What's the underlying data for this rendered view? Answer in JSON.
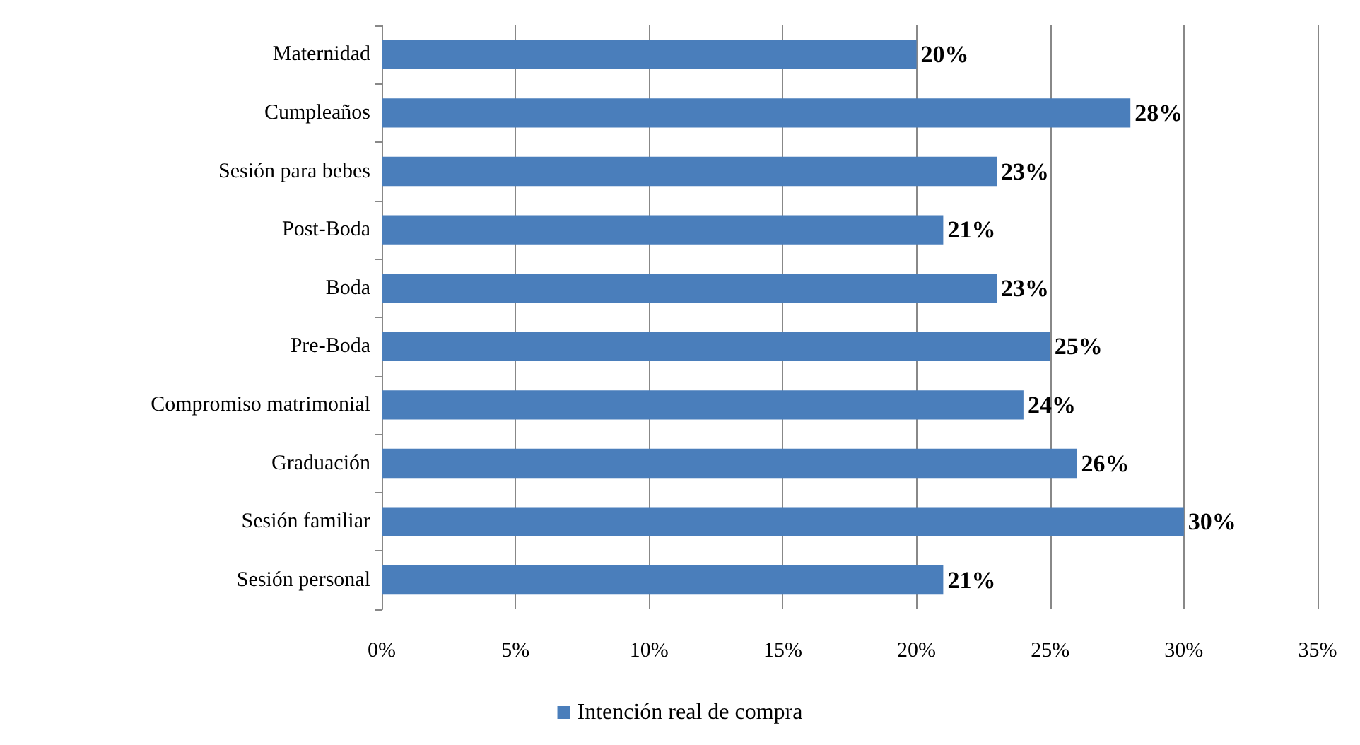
{
  "chart_data": {
    "type": "bar",
    "orientation": "horizontal",
    "categories": [
      "Maternidad",
      "Cumpleaños",
      "Sesión para bebes",
      "Post-Boda",
      "Boda",
      "Pre-Boda",
      "Compromiso matrimonial",
      "Graduación",
      "Sesión familiar",
      "Sesión personal"
    ],
    "series": [
      {
        "name": "Intención real de compra",
        "color": "#4a7ebb",
        "values": [
          20,
          28,
          23,
          21,
          23,
          25,
          24,
          26,
          30,
          21
        ],
        "value_labels": [
          "20%",
          "28%",
          "23%",
          "21%",
          "23%",
          "25%",
          "24%",
          "26%",
          "30%",
          "21%"
        ]
      }
    ],
    "xlim": [
      0,
      35
    ],
    "xticks": [
      {
        "value": 0,
        "label": "0%"
      },
      {
        "value": 5,
        "label": "5%"
      },
      {
        "value": 10,
        "label": "10%"
      },
      {
        "value": 15,
        "label": "15%"
      },
      {
        "value": 20,
        "label": "20%"
      },
      {
        "value": 25,
        "label": "25%"
      },
      {
        "value": 30,
        "label": "30%"
      },
      {
        "value": 35,
        "label": "35%"
      }
    ],
    "grid": "x",
    "legend": "bottom"
  }
}
